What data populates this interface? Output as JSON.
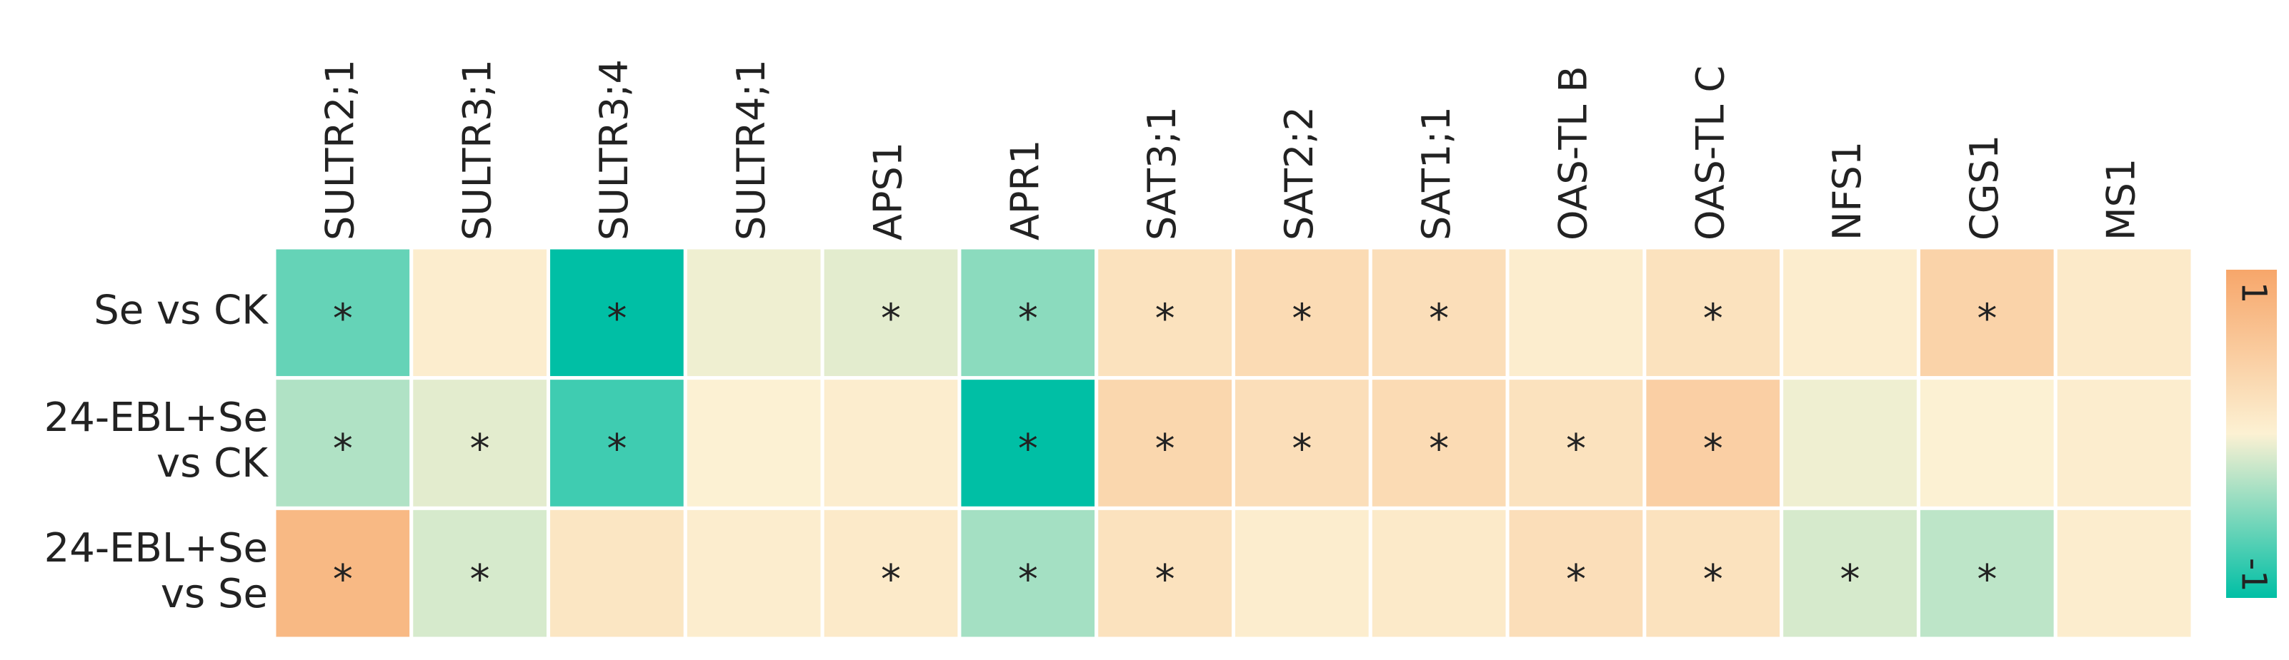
{
  "chart_data": {
    "type": "heatmap",
    "columns": [
      "SULTR2;1",
      "SULTR3;1",
      "SULTR3;4",
      "SULTR4;1",
      "APS1",
      "APR1",
      "SAT3;1",
      "SAT2;2",
      "SAT1;1",
      "OAS-TL B",
      "OAS-TL C",
      "NFS1",
      "CGS1",
      "MS1"
    ],
    "rows": [
      [
        "Se vs CK"
      ],
      [
        "24-EBL+Se",
        "vs CK"
      ],
      [
        "24-EBL+Se",
        "vs Se"
      ]
    ],
    "values": [
      [
        -0.6,
        0.05,
        -1,
        -0.05,
        -0.1,
        -0.45,
        0.2,
        0.3,
        0.25,
        0.05,
        0.2,
        0.05,
        0.4,
        0.1
      ],
      [
        -0.3,
        -0.1,
        -0.75,
        0.0,
        0.05,
        -1,
        0.35,
        0.25,
        0.3,
        0.2,
        0.45,
        -0.05,
        0.0,
        0.05
      ],
      [
        0.75,
        -0.15,
        0.15,
        0.05,
        0.1,
        -0.35,
        0.2,
        0.05,
        0.1,
        0.25,
        0.2,
        -0.15,
        -0.25,
        0.05
      ]
    ],
    "significance": [
      [
        "*",
        null,
        "*",
        null,
        "*",
        "*",
        "*",
        "*",
        "*",
        null,
        "*",
        null,
        "*",
        null
      ],
      [
        "*",
        "*",
        "*",
        null,
        null,
        "*",
        "*",
        "*",
        "*",
        "*",
        "*",
        null,
        null,
        null
      ],
      [
        "*",
        "*",
        null,
        null,
        "*",
        "*",
        "*",
        null,
        null,
        "*",
        "*",
        "*",
        "*",
        null
      ]
    ],
    "colormap": [
      "#00bfa5",
      "#fcf1d3",
      "#f7a66a"
    ],
    "clim": [
      -1,
      1
    ],
    "colorbar_ticks": [
      -1,
      1
    ]
  }
}
